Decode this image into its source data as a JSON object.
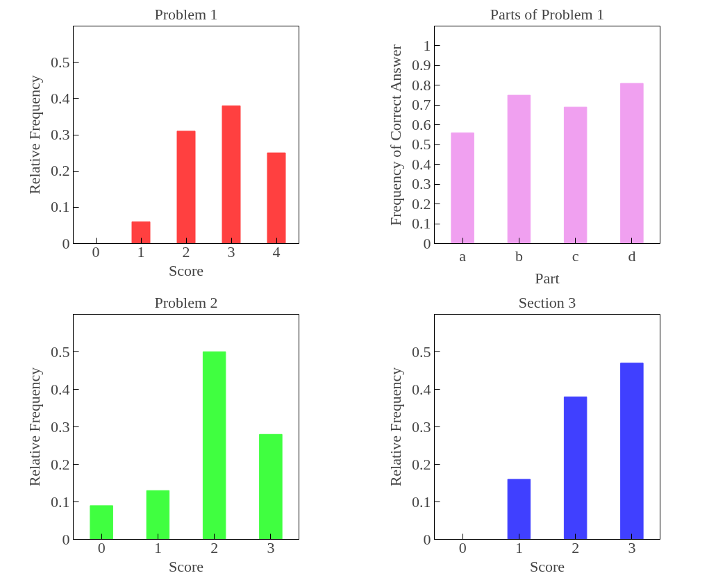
{
  "chart_data": [
    {
      "type": "bar",
      "title": "Problem 1",
      "xlabel": "Score",
      "ylabel": "Relative Frequency",
      "categories": [
        "0",
        "1",
        "2",
        "3",
        "4"
      ],
      "values": [
        0,
        0.06,
        0.31,
        0.38,
        0.25
      ],
      "color": "#ff4040",
      "ylim": [
        0,
        0.6
      ],
      "yticks": [
        0,
        0.1,
        0.2,
        0.3,
        0.4,
        0.5
      ]
    },
    {
      "type": "bar",
      "title": "Parts of Problem 1",
      "xlabel": "Part",
      "ylabel": "Frequency of Correct Answer",
      "categories": [
        "a",
        "b",
        "c",
        "d"
      ],
      "values": [
        0.56,
        0.75,
        0.69,
        0.81
      ],
      "color": "#f0a0f0",
      "ylim": [
        0,
        1.1
      ],
      "yticks": [
        0,
        0.1,
        0.2,
        0.3,
        0.4,
        0.5,
        0.6,
        0.7,
        0.8,
        0.9,
        1
      ]
    },
    {
      "type": "bar",
      "title": "Problem 2",
      "xlabel": "Score",
      "ylabel": "Relative Frequency",
      "categories": [
        "0",
        "1",
        "2",
        "3"
      ],
      "values": [
        0.09,
        0.13,
        0.5,
        0.28
      ],
      "color": "#40ff40",
      "ylim": [
        0,
        0.6
      ],
      "yticks": [
        0,
        0.1,
        0.2,
        0.3,
        0.4,
        0.5
      ]
    },
    {
      "type": "bar",
      "title": "Section 3",
      "xlabel": "Score",
      "ylabel": "Relative Frequency",
      "categories": [
        "0",
        "1",
        "2",
        "3"
      ],
      "values": [
        0,
        0.16,
        0.38,
        0.47
      ],
      "color": "#4040ff",
      "ylim": [
        0,
        0.6
      ],
      "yticks": [
        0,
        0.1,
        0.2,
        0.3,
        0.4,
        0.5
      ]
    }
  ]
}
